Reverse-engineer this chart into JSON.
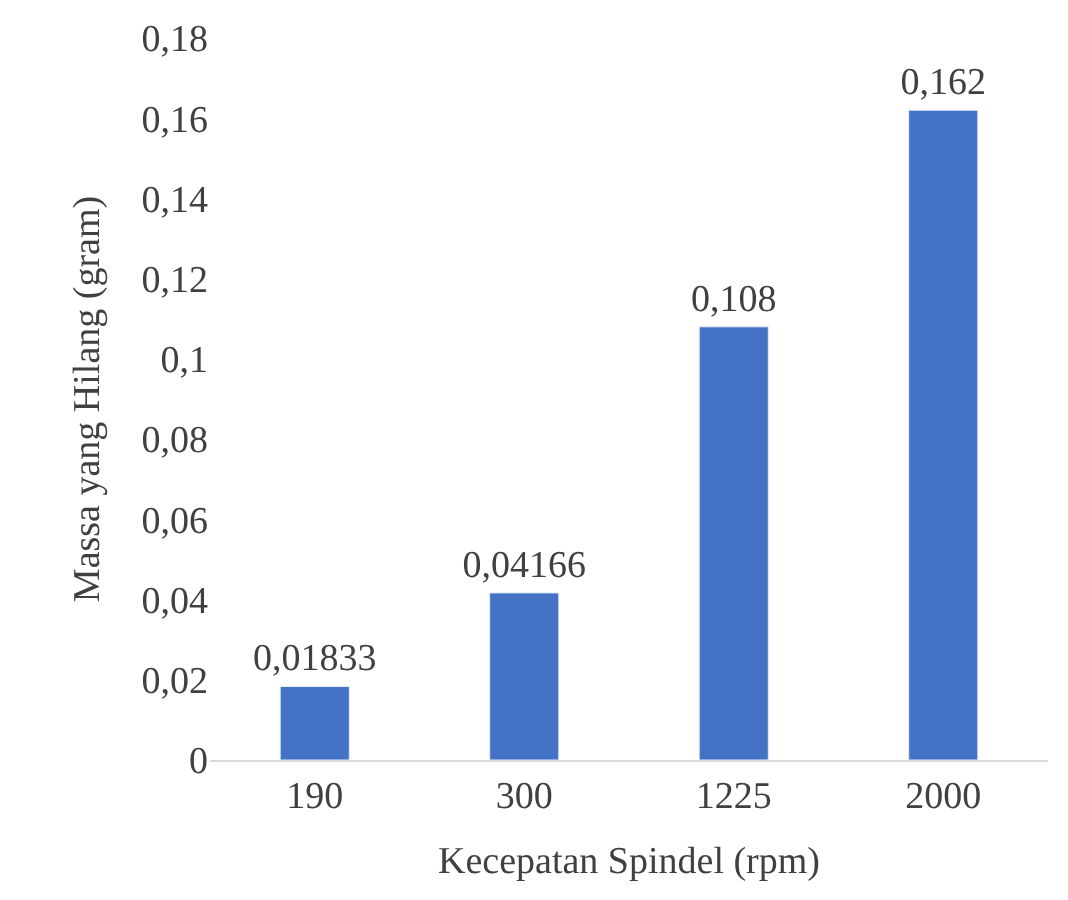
{
  "chart_data": {
    "type": "bar",
    "xlabel": "Kecepatan Spindel (rpm)",
    "ylabel": "Massa yang Hilang (gram)",
    "categories": [
      "190",
      "300",
      "1225",
      "2000"
    ],
    "series": [
      {
        "color": "#4472c4",
        "values": [
          0.01833,
          0.04166,
          0.108,
          0.162
        ],
        "value_labels": [
          "0,01833",
          "0,04166",
          "0,108",
          "0,162"
        ]
      }
    ],
    "ylim": [
      0,
      0.18
    ],
    "yticks": [
      0,
      {
        "value": 0.02,
        "label": "0,02"
      },
      {
        "value": 0.04,
        "label": "0,04"
      },
      {
        "value": 0.06,
        "label": "0,06"
      },
      {
        "value": 0.08,
        "label": "0,08"
      },
      {
        "value": 0.1,
        "label": "0,1"
      },
      {
        "value": 0.12,
        "label": "0,12"
      },
      {
        "value": 0.14,
        "label": "0,14"
      },
      {
        "value": 0.16,
        "label": "0,16"
      },
      {
        "value": 0.18,
        "label": "0,18"
      }
    ],
    "legend": false
  }
}
